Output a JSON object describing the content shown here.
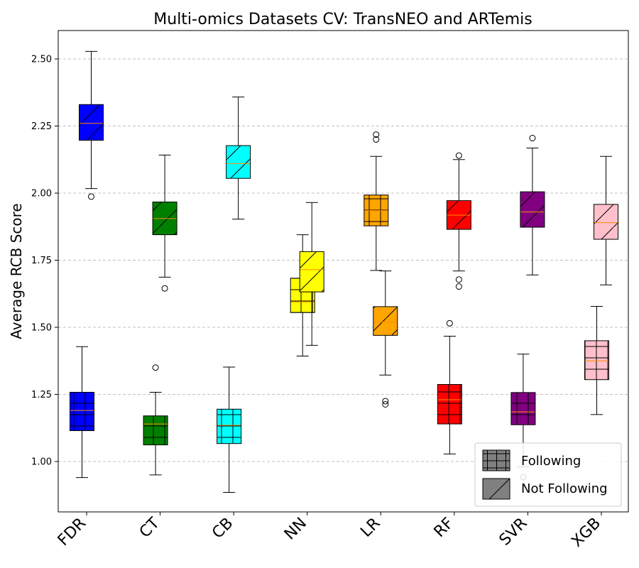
{
  "chart_data": {
    "type": "box",
    "title": "Multi-omics Datasets CV: TransNEO and ARTemis",
    "xlabel": "",
    "ylabel": "Average RCB Score",
    "ylim": [
      0.815,
      2.615
    ],
    "yticks": [
      1.0,
      1.25,
      1.5,
      1.75,
      2.0,
      2.25,
      2.5
    ],
    "ytick_labels": [
      "1.00",
      "1.25",
      "1.50",
      "1.75",
      "2.00",
      "2.25",
      "2.50"
    ],
    "categories": [
      "FDR",
      "CT",
      "CB",
      "NN",
      "LR",
      "RF",
      "SVR",
      "XGB"
    ],
    "colors": [
      "#0000ff",
      "#008000",
      "#00ffff",
      "#ffff00",
      "#ffa500",
      "#ff0000",
      "#800080",
      "#ffc0cb"
    ],
    "grid": "y-dashed",
    "legend_position": "lower-right",
    "series": [
      {
        "name": "Following",
        "hatch": "grid",
        "boxes": [
          {
            "min": 0.94,
            "q1": 1.115,
            "median": 1.19,
            "q3": 1.258,
            "max": 1.428,
            "outliers": []
          },
          {
            "min": 0.95,
            "q1": 1.062,
            "median": 1.14,
            "q3": 1.17,
            "max": 1.258,
            "outliers": [
              1.35
            ]
          },
          {
            "min": 0.885,
            "q1": 1.067,
            "median": 1.135,
            "q3": 1.195,
            "max": 1.352,
            "outliers": []
          },
          {
            "min": 1.393,
            "q1": 1.555,
            "median": 1.595,
            "q3": 1.683,
            "max": 1.845,
            "outliers": []
          },
          {
            "min": 1.712,
            "q1": 1.878,
            "median": 1.935,
            "q3": 1.993,
            "max": 2.137,
            "outliers": [
              2.2,
              2.218
            ]
          },
          {
            "min": 1.028,
            "q1": 1.14,
            "median": 1.23,
            "q3": 1.287,
            "max": 1.467,
            "outliers": [
              1.515
            ]
          },
          {
            "min": 0.98,
            "q1": 1.137,
            "median": 1.185,
            "q3": 1.257,
            "max": 1.4,
            "outliers": [
              0.942
            ]
          },
          {
            "min": 1.175,
            "q1": 1.305,
            "median": 1.375,
            "q3": 1.45,
            "max": 1.578,
            "outliers": []
          }
        ]
      },
      {
        "name": "Not Following",
        "hatch": "diagonal",
        "boxes": [
          {
            "min": 2.017,
            "q1": 2.197,
            "median": 2.26,
            "q3": 2.33,
            "max": 2.528,
            "outliers": [
              1.987
            ]
          },
          {
            "min": 1.687,
            "q1": 1.845,
            "median": 1.905,
            "q3": 1.967,
            "max": 2.142,
            "outliers": [
              1.645
            ]
          },
          {
            "min": 1.903,
            "q1": 2.055,
            "median": 2.11,
            "q3": 2.177,
            "max": 2.358,
            "outliers": []
          },
          {
            "min": 1.433,
            "q1": 1.632,
            "median": 1.715,
            "q3": 1.782,
            "max": 1.965,
            "outliers": []
          },
          {
            "min": 1.322,
            "q1": 1.47,
            "median": 1.52,
            "q3": 1.577,
            "max": 1.71,
            "outliers": [
              1.213,
              1.225
            ]
          },
          {
            "min": 1.71,
            "q1": 1.865,
            "median": 1.918,
            "q3": 1.972,
            "max": 2.125,
            "outliers": [
              1.652,
              1.678,
              2.14
            ]
          },
          {
            "min": 1.695,
            "q1": 1.873,
            "median": 1.93,
            "q3": 2.005,
            "max": 2.168,
            "outliers": [
              2.205
            ]
          },
          {
            "min": 1.658,
            "q1": 1.828,
            "median": 1.89,
            "q3": 1.958,
            "max": 2.137,
            "outliers": []
          }
        ]
      }
    ]
  }
}
